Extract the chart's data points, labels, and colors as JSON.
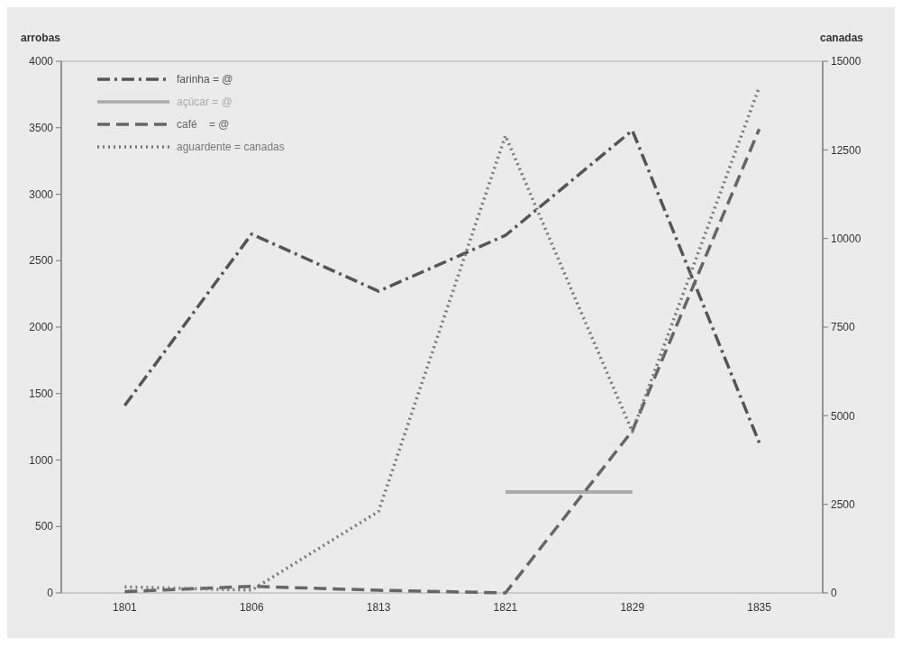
{
  "chart_data": {
    "type": "line",
    "ylabel": "arrobas",
    "y2label": "canadas",
    "categories": [
      "1801",
      "1806",
      "1813",
      "1821",
      "1829",
      "1835"
    ],
    "ylim": [
      0,
      4000
    ],
    "yticks": [
      0,
      500,
      1000,
      1500,
      2000,
      2500,
      3000,
      3500,
      4000
    ],
    "y2lim": [
      0,
      15000
    ],
    "y2ticks": [
      0,
      2500,
      5000,
      7500,
      10000,
      12500,
      15000
    ],
    "legend": "top left",
    "grid": false,
    "marker": "none",
    "series": [
      {
        "name": "farinha = @",
        "color": "#555555",
        "line_style": "dashdot",
        "values": [
          1410,
          2700,
          2270,
          2690,
          3480,
          1130
        ]
      },
      {
        "name": "açúcar = @",
        "color": "#aaaaaa",
        "line_style": "solid",
        "values": [
          null,
          null,
          null,
          760,
          760,
          null
        ]
      },
      {
        "name": "café    = @",
        "color": "#666666",
        "line_style": "dashed",
        "values": [
          10,
          50,
          20,
          0,
          1220,
          3490
        ]
      },
      {
        "name": "aguardente = canadas",
        "color": "#777777",
        "line_style": "dotted",
        "axis": "y2",
        "values": [
          170,
          80,
          2300,
          12900,
          4550,
          14270
        ]
      }
    ]
  }
}
